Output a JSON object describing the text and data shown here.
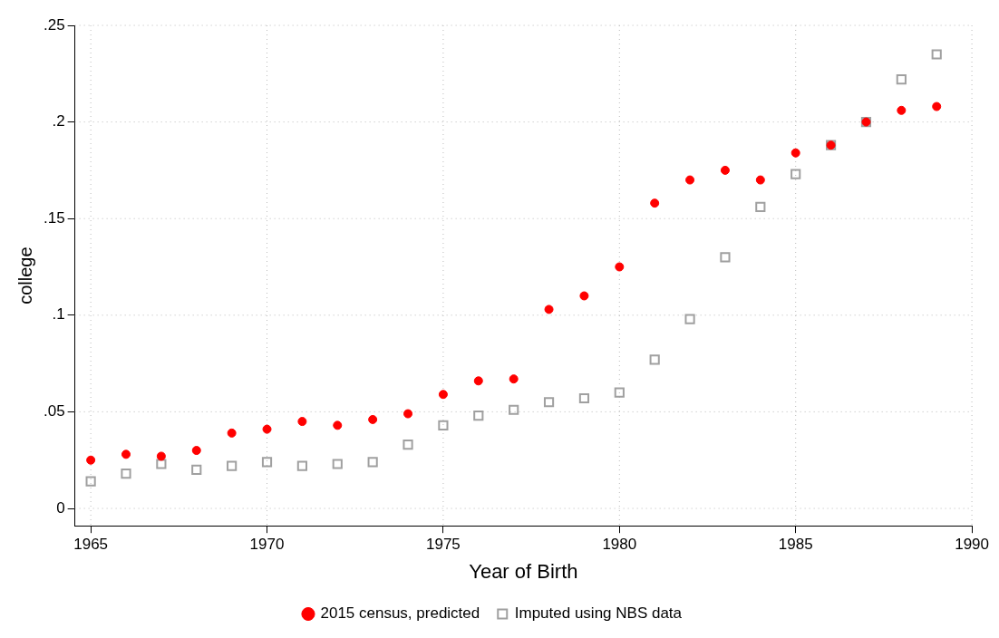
{
  "chart_data": {
    "type": "scatter",
    "xlabel": "Year of Birth",
    "ylabel": "college",
    "x": [
      1965,
      1966,
      1967,
      1968,
      1969,
      1970,
      1971,
      1972,
      1973,
      1974,
      1975,
      1976,
      1977,
      1978,
      1979,
      1980,
      1981,
      1982,
      1983,
      1984,
      1985,
      1986,
      1987,
      1988,
      1989
    ],
    "series": [
      {
        "name": "2015 census, predicted",
        "color": "#ff0000",
        "marker": "circle",
        "values": [
          0.025,
          0.028,
          0.027,
          0.03,
          0.039,
          0.041,
          0.045,
          0.043,
          0.046,
          0.049,
          0.059,
          0.066,
          0.067,
          0.103,
          0.11,
          0.125,
          0.158,
          0.17,
          0.175,
          0.17,
          0.184,
          0.188,
          0.2,
          0.206,
          0.208
        ]
      },
      {
        "name": "Imputed using NBS data",
        "color": "#a0a0a0",
        "marker": "square",
        "values": [
          0.014,
          0.018,
          0.023,
          0.02,
          0.022,
          0.024,
          0.022,
          0.023,
          0.024,
          0.033,
          0.043,
          0.048,
          0.051,
          0.055,
          0.057,
          0.06,
          0.077,
          0.098,
          0.13,
          0.156,
          0.173,
          0.188,
          0.2,
          0.222,
          0.235
        ]
      }
    ],
    "xlim": [
      1964.55,
      1990
    ],
    "xticks": [
      1965,
      1970,
      1975,
      1980,
      1985,
      1990
    ],
    "ylim": [
      -0.009,
      0.25
    ],
    "yticks": [
      {
        "value": 0,
        "label": "0"
      },
      {
        "value": 0.05,
        "label": ".05"
      },
      {
        "value": 0.1,
        "label": ".1"
      },
      {
        "value": 0.15,
        "label": ".15"
      },
      {
        "value": 0.2,
        "label": ".2"
      },
      {
        "value": 0.25,
        "label": ".25"
      }
    ],
    "grid": true,
    "legend": "bottom"
  }
}
